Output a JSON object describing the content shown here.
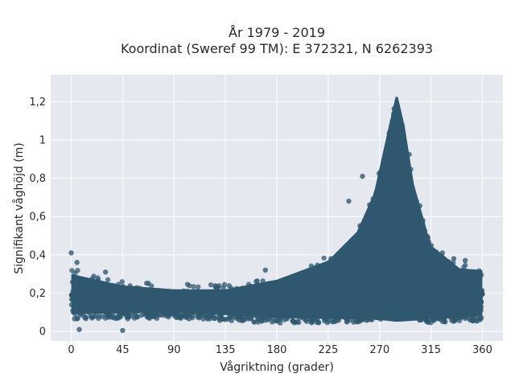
{
  "chart_data": {
    "type": "scatter",
    "title": "År 1979 - 2019",
    "subtitle": "Koordinat (Sweref 99 TM): E 372321, N 6262393",
    "xlabel": "Vågriktning (grader)",
    "ylabel": "Signifikant våghöjd (m)",
    "xlim": [
      -18,
      378
    ],
    "ylim": [
      -0.05,
      1.34
    ],
    "x_ticks": [
      0,
      45,
      90,
      135,
      180,
      225,
      270,
      315,
      360
    ],
    "y_ticks": [
      {
        "value": 0,
        "label": "0"
      },
      {
        "value": 0.2,
        "label": "0,2"
      },
      {
        "value": 0.4,
        "label": "0,4"
      },
      {
        "value": 0.6,
        "label": "0,6"
      },
      {
        "value": 0.8,
        "label": "0,8"
      },
      {
        "value": 1.0,
        "label": "1"
      },
      {
        "value": 1.2,
        "label": "1,2"
      }
    ],
    "grid": true,
    "marker_color": "#2f5870",
    "plot_background": "#e6e8ef",
    "upper_envelope": [
      {
        "x": 0,
        "y": 0.33
      },
      {
        "x": 45,
        "y": 0.27
      },
      {
        "x": 90,
        "y": 0.25
      },
      {
        "x": 135,
        "y": 0.25
      },
      {
        "x": 180,
        "y": 0.3
      },
      {
        "x": 225,
        "y": 0.4
      },
      {
        "x": 250,
        "y": 0.55
      },
      {
        "x": 265,
        "y": 0.75
      },
      {
        "x": 278,
        "y": 1.1
      },
      {
        "x": 285,
        "y": 1.28
      },
      {
        "x": 292,
        "y": 1.1
      },
      {
        "x": 300,
        "y": 0.8
      },
      {
        "x": 315,
        "y": 0.48
      },
      {
        "x": 340,
        "y": 0.36
      },
      {
        "x": 360,
        "y": 0.35
      }
    ],
    "lower_envelope": [
      {
        "x": 0,
        "y": 0.05
      },
      {
        "x": 90,
        "y": 0.06
      },
      {
        "x": 180,
        "y": 0.03
      },
      {
        "x": 270,
        "y": 0.02
      },
      {
        "x": 285,
        "y": 0.01
      },
      {
        "x": 360,
        "y": 0.04
      }
    ],
    "outliers": [
      {
        "x": 0,
        "y": 0.41
      },
      {
        "x": 5,
        "y": 0.36
      },
      {
        "x": 30,
        "y": 0.31
      },
      {
        "x": 170,
        "y": 0.32
      },
      {
        "x": 243,
        "y": 0.68
      },
      {
        "x": 255,
        "y": 0.81
      },
      {
        "x": 290,
        "y": 0.78
      },
      {
        "x": 325,
        "y": 0.41
      },
      {
        "x": 335,
        "y": 0.38
      },
      {
        "x": 345,
        "y": 0.37
      },
      {
        "x": 45,
        "y": 0.005
      },
      {
        "x": 7,
        "y": 0.01
      }
    ]
  }
}
